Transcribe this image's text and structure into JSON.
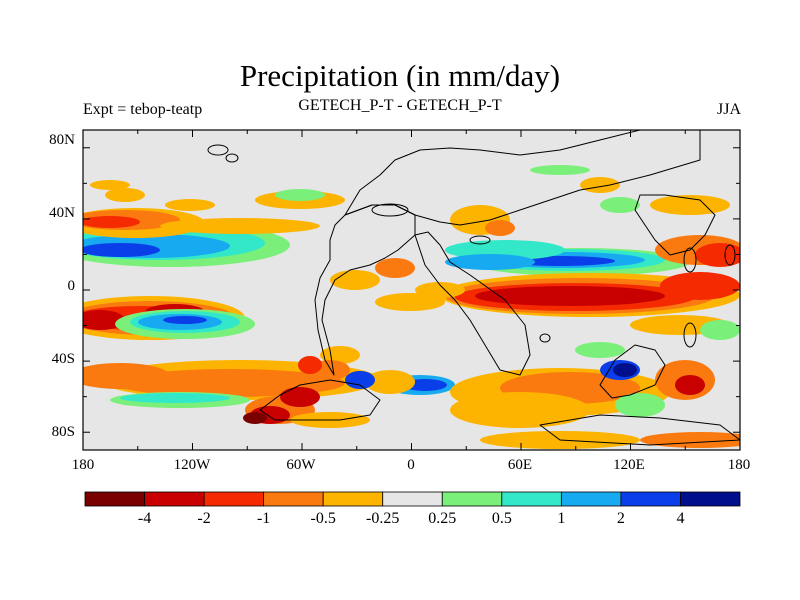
{
  "title": "Precipitation (in mm/day)",
  "subtitle_left": "Expt = tebop-teatp",
  "subtitle_center": "GETECH_P-T - GETECH_P-T",
  "subtitle_right": "JJA",
  "lat_labels": [
    "80N",
    "40N",
    "0",
    "40S",
    "80S"
  ],
  "lat_values": [
    80,
    40,
    0,
    -40,
    -80
  ],
  "lon_labels": [
    "180",
    "120W",
    "60W",
    "0",
    "60E",
    "120E",
    "180"
  ],
  "lon_values": [
    -180,
    -120,
    -60,
    0,
    60,
    120,
    180
  ],
  "colorbar": {
    "colors": [
      "#7a0000",
      "#c80000",
      "#f52a00",
      "#fa7a10",
      "#fdb400",
      "#e6e6e6",
      "#7af07a",
      "#33e8c8",
      "#18aaf0",
      "#0a3ee8",
      "#000f8c"
    ],
    "labels": [
      "-4",
      "-2",
      "-1",
      "-0.5",
      "-0.25",
      "0.25",
      "0.5",
      "1",
      "2",
      "4"
    ]
  },
  "map_background": "#e6e6e6"
}
